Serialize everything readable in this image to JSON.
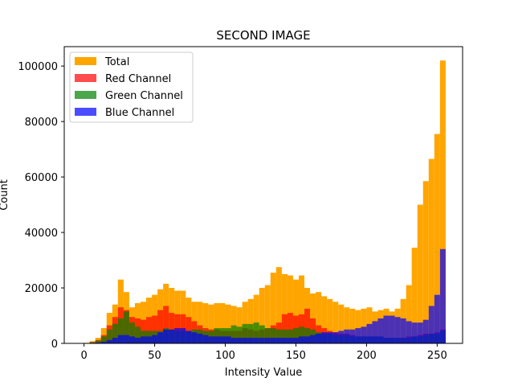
{
  "chart_data": {
    "type": "histogram",
    "title": "SECOND IMAGE",
    "xlabel": "Intensity Value",
    "ylabel": "Count",
    "xlim": [
      -14,
      268
    ],
    "ylim": [
      0,
      107000
    ],
    "bin_width": 4,
    "xticks": [
      0,
      50,
      100,
      150,
      200,
      250
    ],
    "yticks": [
      0,
      20000,
      40000,
      60000,
      80000,
      100000
    ],
    "legend_position": "top-left",
    "series": [
      {
        "name": "Total",
        "color": "#FFA500",
        "alpha": 1.0,
        "bin_starts": [
          0,
          4,
          8,
          12,
          16,
          20,
          24,
          28,
          32,
          36,
          40,
          44,
          48,
          52,
          56,
          60,
          64,
          68,
          72,
          76,
          80,
          84,
          88,
          92,
          96,
          100,
          104,
          108,
          112,
          116,
          120,
          124,
          128,
          132,
          136,
          140,
          144,
          148,
          152,
          156,
          160,
          164,
          168,
          172,
          176,
          180,
          184,
          188,
          192,
          196,
          200,
          204,
          208,
          212,
          216,
          220,
          224,
          228,
          232,
          236,
          240,
          244,
          248,
          252
        ],
        "values": [
          200,
          800,
          2000,
          5500,
          11000,
          14000,
          23000,
          18500,
          13000,
          14500,
          15000,
          16500,
          17500,
          19500,
          21500,
          20000,
          19000,
          19000,
          16500,
          15000,
          15000,
          14500,
          14000,
          14500,
          14500,
          14000,
          13500,
          13000,
          15000,
          16000,
          17500,
          20000,
          21000,
          25500,
          27500,
          25000,
          24500,
          23000,
          24500,
          20000,
          18000,
          18500,
          17000,
          16000,
          15000,
          14000,
          13000,
          12500,
          12000,
          12500,
          13000,
          11500,
          12000,
          12500,
          11500,
          12500,
          16000,
          21000,
          34500,
          50000,
          58500,
          66500,
          75500,
          102000
        ]
      },
      {
        "name": "Red Channel",
        "color": "#FF0000",
        "alpha": 0.7,
        "bin_starts": [
          0,
          4,
          8,
          12,
          16,
          20,
          24,
          28,
          32,
          36,
          40,
          44,
          48,
          52,
          56,
          60,
          64,
          68,
          72,
          76,
          80,
          84,
          88,
          92,
          96,
          100,
          104,
          108,
          112,
          116,
          120,
          124,
          128,
          132,
          136,
          140,
          144,
          148,
          152,
          156,
          160,
          164,
          168,
          172,
          176,
          180,
          184,
          188,
          192,
          196,
          200,
          204,
          208,
          212,
          216,
          220,
          224,
          228,
          232,
          236,
          240,
          244,
          248,
          252
        ],
        "values": [
          100,
          500,
          1200,
          3000,
          6500,
          9500,
          13000,
          12000,
          9500,
          9000,
          8500,
          9500,
          10000,
          12000,
          13500,
          11000,
          10500,
          10500,
          9500,
          8000,
          6500,
          5500,
          5000,
          5000,
          4500,
          4500,
          4500,
          4500,
          5500,
          5000,
          4500,
          5000,
          5500,
          6500,
          7500,
          10500,
          11000,
          10000,
          10500,
          12500,
          9000,
          6500,
          5500,
          4500,
          4000,
          3500,
          3500,
          3000,
          2500,
          2500,
          2500,
          2500,
          2500,
          2000,
          2000,
          2000,
          2000,
          2500,
          2500,
          3000,
          3500,
          3500,
          4000,
          5000
        ]
      },
      {
        "name": "Green Channel",
        "color": "#008000",
        "alpha": 0.7,
        "bin_starts": [
          0,
          4,
          8,
          12,
          16,
          20,
          24,
          28,
          32,
          36,
          40,
          44,
          48,
          52,
          56,
          60,
          64,
          68,
          72,
          76,
          80,
          84,
          88,
          92,
          96,
          100,
          104,
          108,
          112,
          116,
          120,
          124,
          128,
          132,
          136,
          140,
          144,
          148,
          152,
          156,
          160,
          164,
          168,
          172,
          176,
          180,
          184,
          188,
          192,
          196,
          200,
          204,
          208,
          212,
          216,
          220,
          224,
          228,
          232,
          236,
          240,
          244,
          248,
          252
        ],
        "values": [
          100,
          400,
          1000,
          2500,
          5000,
          7000,
          9000,
          11500,
          7500,
          6000,
          4500,
          4500,
          4500,
          4500,
          5500,
          5000,
          4500,
          4500,
          4500,
          5000,
          5000,
          4500,
          4500,
          5500,
          5500,
          5500,
          6500,
          6000,
          7000,
          7000,
          7500,
          6500,
          5500,
          5500,
          5000,
          5000,
          5000,
          5500,
          6000,
          5500,
          5000,
          4000,
          3500,
          3500,
          3000,
          3000,
          3000,
          2500,
          2500,
          2500,
          2500,
          2500,
          2500,
          2000,
          2000,
          2000,
          2000,
          2000,
          2500,
          2500,
          3000,
          3500,
          3500,
          4500
        ]
      },
      {
        "name": "Blue Channel",
        "color": "#0000FF",
        "alpha": 0.7,
        "bin_starts": [
          0,
          4,
          8,
          12,
          16,
          20,
          24,
          28,
          32,
          36,
          40,
          44,
          48,
          52,
          56,
          60,
          64,
          68,
          72,
          76,
          80,
          84,
          88,
          92,
          96,
          100,
          104,
          108,
          112,
          116,
          120,
          124,
          128,
          132,
          136,
          140,
          144,
          148,
          152,
          156,
          160,
          164,
          168,
          172,
          176,
          180,
          184,
          188,
          192,
          196,
          200,
          204,
          208,
          212,
          216,
          220,
          224,
          228,
          232,
          236,
          240,
          244,
          248,
          252
        ],
        "values": [
          0,
          100,
          300,
          600,
          1200,
          2000,
          3000,
          3000,
          2500,
          2000,
          2500,
          2500,
          3000,
          4000,
          5000,
          5000,
          5500,
          5500,
          4500,
          4000,
          3500,
          3000,
          2500,
          2500,
          2500,
          2500,
          2000,
          2000,
          2000,
          2000,
          2000,
          2000,
          2000,
          2000,
          2000,
          2000,
          2000,
          2000,
          2500,
          2500,
          3000,
          3500,
          4000,
          4000,
          4000,
          4500,
          5000,
          5000,
          5500,
          6000,
          7000,
          8000,
          9000,
          10000,
          10000,
          9500,
          9000,
          8000,
          7500,
          7500,
          8500,
          13500,
          17500,
          34000
        ]
      }
    ]
  }
}
